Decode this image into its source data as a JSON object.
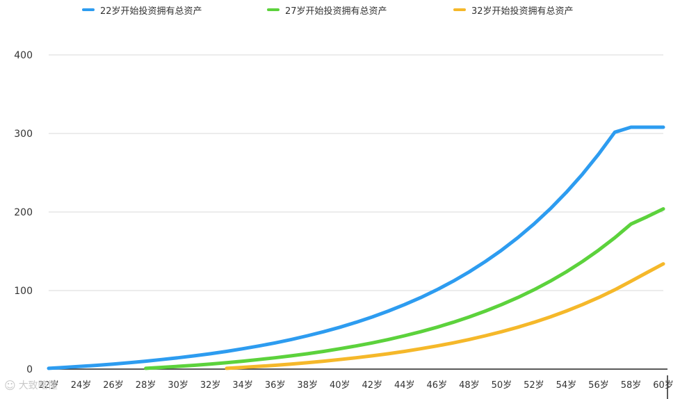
{
  "chart_data": {
    "type": "line",
    "title": "",
    "xlabel": "",
    "ylabel": "",
    "x": [
      "22岁",
      "23岁",
      "24岁",
      "25岁",
      "26岁",
      "27岁",
      "28岁",
      "29岁",
      "30岁",
      "31岁",
      "32岁",
      "33岁",
      "34岁",
      "35岁",
      "36岁",
      "37岁",
      "38岁",
      "39岁",
      "40岁",
      "41岁",
      "42岁",
      "43岁",
      "44岁",
      "45岁",
      "46岁",
      "47岁",
      "48岁",
      "49岁",
      "50岁",
      "51岁",
      "52岁",
      "53岁",
      "54岁",
      "55岁",
      "56岁",
      "57岁",
      "58岁",
      "59岁",
      "60岁"
    ],
    "x_tick_labels": [
      "22岁",
      "24岁",
      "26岁",
      "28岁",
      "30岁",
      "32岁",
      "34岁",
      "36岁",
      "38岁",
      "40岁",
      "42岁",
      "44岁",
      "46岁",
      "48岁",
      "50岁",
      "52岁",
      "54岁",
      "56岁",
      "58岁",
      "60岁"
    ],
    "ylim": [
      0,
      400
    ],
    "yticks": [
      0,
      100,
      200,
      300,
      400
    ],
    "grid": true,
    "legend_position": "top",
    "series": [
      {
        "name": "22岁开始投资拥有总资产",
        "color": "#2d9cf0",
        "values": [
          1,
          2.2,
          3.5,
          4.9,
          6.5,
          8.2,
          10.1,
          12.2,
          14.4,
          16.9,
          19.6,
          22.6,
          25.9,
          29.5,
          33.4,
          37.7,
          42.5,
          47.6,
          53.3,
          59.6,
          66.4,
          73.9,
          82.1,
          91.1,
          101.0,
          111.9,
          123.8,
          137.0,
          151.4,
          167.3,
          184.7,
          203.9,
          225.0,
          248.1,
          273.6,
          301.6,
          308.0,
          308.0,
          308.0
        ]
      },
      {
        "name": "27岁开始投资拥有总资产",
        "color": "#5cd23c",
        "values": [
          null,
          null,
          null,
          null,
          null,
          null,
          1,
          2.2,
          3.5,
          4.9,
          6.5,
          8.2,
          10.1,
          12.2,
          14.4,
          16.9,
          19.6,
          22.6,
          25.9,
          29.5,
          33.4,
          37.7,
          42.5,
          47.6,
          53.3,
          59.6,
          66.4,
          73.9,
          82.1,
          91.1,
          101.0,
          111.9,
          123.8,
          137.0,
          151.4,
          167.3,
          184.7,
          194.0,
          204.0
        ]
      },
      {
        "name": "32岁开始投资拥有总资产",
        "color": "#f5b82a",
        "values": [
          null,
          null,
          null,
          null,
          null,
          null,
          null,
          null,
          null,
          null,
          null,
          1,
          2.2,
          3.5,
          4.9,
          6.5,
          8.2,
          10.1,
          12.2,
          14.4,
          16.9,
          19.6,
          22.6,
          25.9,
          29.5,
          33.4,
          37.7,
          42.5,
          47.6,
          53.3,
          59.6,
          66.4,
          73.9,
          82.1,
          91.1,
          101.0,
          111.9,
          123.0,
          134.0
        ]
      }
    ]
  },
  "watermark": {
    "icon": "watermark-logo-icon",
    "text": "大致略懂"
  }
}
